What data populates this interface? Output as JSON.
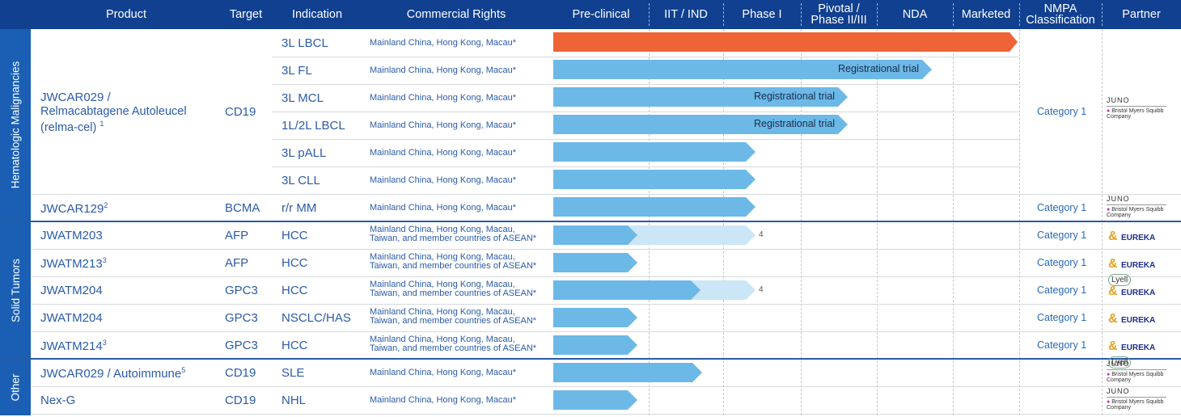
{
  "header": {
    "product": "Product",
    "target": "Target",
    "indication": "Indication",
    "rights": "Commercial Rights",
    "preclinical": "Pre-clinical",
    "iit": "IIT / IND",
    "phase1": "Phase I",
    "pivotal_line1": "Pivotal /",
    "pivotal_line2": "Phase II/III",
    "nda": "NDA",
    "marketed": "Marketed",
    "nmpa_line1": "NMPA",
    "nmpa_line2": "Classification",
    "partner": "Partner"
  },
  "groups": {
    "heme": "Hematologic Malignancies",
    "solid": "Solid Tumors",
    "other": "Other"
  },
  "products": {
    "relma_line1": "JWCAR029 /",
    "relma_line2": "Relmacabtagene Autoleucel",
    "relma_line3": "(relma-cel)",
    "relma_sup": "1",
    "relma_target": "CD19",
    "relma_category": "Category 1",
    "car129_name": "JWCAR129",
    "car129_sup": "2",
    "car129_target": "BCMA",
    "car129_indication": "r/r MM",
    "car129_category": "Category 1"
  },
  "rights_short": "Mainland China, Hong Kong, Macau*",
  "rights_long_line1": "Mainland China, Hong Kong, Macau,",
  "rights_long_line2": "Taiwan, and member countries of ASEAN*",
  "relma_indications": [
    "3L LBCL",
    "3L FL",
    "3L MCL",
    "1L/2L LBCL",
    "3L pALL",
    "3L CLL"
  ],
  "bar_labels": {
    "fl": "Registrational trial",
    "mcl": "Registrational trial",
    "lbcl12": "Registrational trial"
  },
  "solid_rows": [
    {
      "name": "JWATM203",
      "sup": "",
      "target": "AFP",
      "indication": "HCC",
      "category": "Category 1",
      "footnote": "4"
    },
    {
      "name": "JWATM213",
      "sup": "3",
      "target": "AFP",
      "indication": "HCC",
      "category": "Category 1",
      "footnote": ""
    },
    {
      "name": "JWATM204",
      "sup": "",
      "target": "GPC3",
      "indication": "HCC",
      "category": "Category 1",
      "footnote": "4"
    },
    {
      "name": "JWATM204",
      "sup": "",
      "target": "GPC3",
      "indication": "NSCLC/HAS",
      "category": "Category 1",
      "footnote": ""
    },
    {
      "name": "JWATM214",
      "sup": "3",
      "target": "GPC3",
      "indication": "HCC",
      "category": "Category 1",
      "footnote": ""
    }
  ],
  "other_rows": [
    {
      "name": "JWCAR029 / Autoimmune",
      "sup": "5",
      "target": "CD19",
      "indication": "SLE"
    },
    {
      "name": "Nex-G",
      "sup": "",
      "target": "CD19",
      "indication": "NHL"
    }
  ],
  "partners": {
    "juno": "JUNO",
    "bms_line1": "Bristol Myers Squibb",
    "bms_line2": "Company",
    "eureka": "EUREKA",
    "lyell": "Lyell"
  },
  "colors": {
    "header_bg": "#10408f",
    "sidebar_bg": "#1a5fb4",
    "marketed_bar": "#ee6436",
    "main_bar": "#6cb9e8",
    "light_bar": "#cbe6f7",
    "text_blue": "#2a5ba8"
  },
  "progress": {
    "stages": [
      "Pre-clinical",
      "IIT / IND",
      "Phase I",
      "Pivotal / Phase II/III",
      "NDA",
      "Marketed"
    ],
    "rows": [
      {
        "id": "3L LBCL",
        "reached": "Marketed"
      },
      {
        "id": "3L FL",
        "reached": "NDA"
      },
      {
        "id": "3L MCL",
        "reached": "Pivotal / Phase II/III"
      },
      {
        "id": "1L/2L LBCL",
        "reached": "Pivotal / Phase II/III"
      },
      {
        "id": "3L pALL",
        "reached": "Phase I"
      },
      {
        "id": "3L CLL",
        "reached": "Phase I"
      },
      {
        "id": "JWCAR129",
        "reached": "Phase I"
      },
      {
        "id": "JWATM203",
        "reached": "Pre-clinical",
        "extended": "Phase I"
      },
      {
        "id": "JWATM213",
        "reached": "Pre-clinical"
      },
      {
        "id": "JWATM204 HCC",
        "reached": "IIT / IND",
        "extended": "Phase I"
      },
      {
        "id": "JWATM204 NSCLC/HAS",
        "reached": "Pre-clinical"
      },
      {
        "id": "JWATM214",
        "reached": "Pre-clinical"
      },
      {
        "id": "JWCAR029 SLE",
        "reached": "IIT / IND"
      },
      {
        "id": "Nex-G",
        "reached": "Pre-clinical"
      }
    ]
  }
}
